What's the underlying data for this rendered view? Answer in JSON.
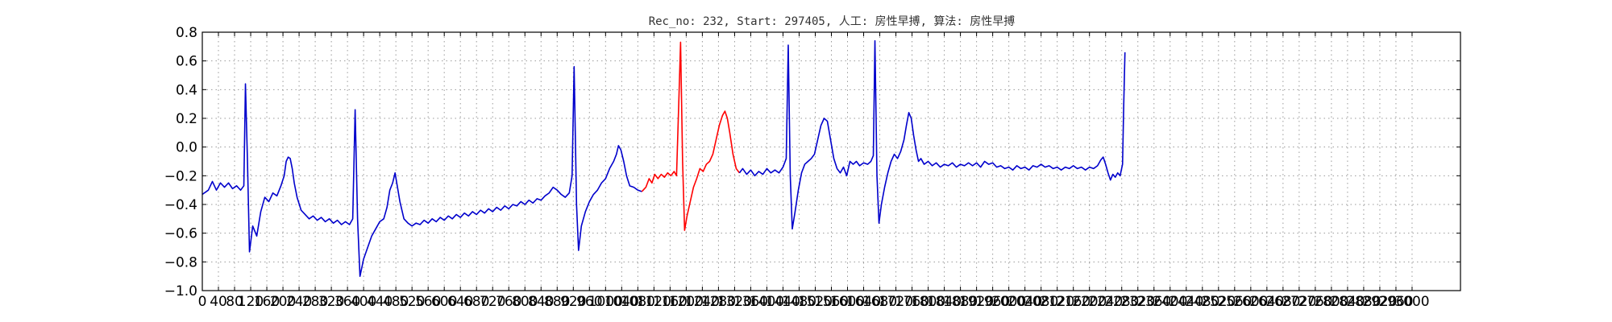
{
  "chart_data": {
    "type": "line",
    "title": "Rec_no: 232, Start: 297405, 人工: 房性早搏, 算法: 房性早搏",
    "xlabel": "",
    "ylabel": "",
    "xlim": [
      0,
      3120
    ],
    "ylim": [
      -1.0,
      0.8
    ],
    "grid": true,
    "legend": "none",
    "yticks": [
      -1.0,
      -0.8,
      -0.6,
      -0.4,
      -0.2,
      0.0,
      0.2,
      0.4,
      0.6,
      0.8
    ],
    "ytick_labels": [
      "−1.0",
      "−0.8",
      "−0.6",
      "−0.4",
      "−0.2",
      "0.0",
      "0.2",
      "0.4",
      "0.6",
      "0.8"
    ],
    "xticks": [
      0,
      40,
      80,
      120,
      160,
      200,
      240,
      280,
      320,
      360,
      400,
      440,
      480,
      520,
      560,
      600,
      640,
      680,
      720,
      760,
      800,
      840,
      880,
      920,
      960,
      1000,
      1040,
      1080,
      1120,
      1160,
      1200,
      1240,
      1280,
      1320,
      1360,
      1400,
      1440,
      1480,
      1520,
      1560,
      1600,
      1640,
      1680,
      1720,
      1760,
      1800,
      1840,
      1880,
      1920,
      1960,
      2000,
      2040,
      2080,
      2120,
      2160,
      2200,
      2240,
      2280,
      2320,
      2360,
      2400,
      2440,
      2480,
      2520,
      2560,
      2600,
      2640,
      2680,
      2720,
      2760,
      2800,
      2840,
      2880,
      2920,
      2960,
      3000
    ],
    "series": [
      {
        "color": "#0000cc",
        "points": [
          [
            0,
            -0.33
          ],
          [
            15,
            -0.3
          ],
          [
            25,
            -0.24
          ],
          [
            35,
            -0.3
          ],
          [
            45,
            -0.25
          ],
          [
            55,
            -0.28
          ],
          [
            65,
            -0.25
          ],
          [
            75,
            -0.29
          ],
          [
            85,
            -0.27
          ],
          [
            95,
            -0.3
          ],
          [
            103,
            -0.27
          ],
          [
            107,
            0.44
          ],
          [
            112,
            -0.1
          ],
          [
            117,
            -0.73
          ],
          [
            125,
            -0.55
          ],
          [
            135,
            -0.62
          ],
          [
            145,
            -0.45
          ],
          [
            155,
            -0.35
          ],
          [
            165,
            -0.38
          ],
          [
            175,
            -0.32
          ],
          [
            185,
            -0.34
          ],
          [
            195,
            -0.27
          ],
          [
            203,
            -0.2
          ],
          [
            208,
            -0.1
          ],
          [
            213,
            -0.07
          ],
          [
            218,
            -0.08
          ],
          [
            223,
            -0.15
          ],
          [
            228,
            -0.25
          ],
          [
            235,
            -0.35
          ],
          [
            245,
            -0.44
          ],
          [
            255,
            -0.47
          ],
          [
            265,
            -0.5
          ],
          [
            275,
            -0.48
          ],
          [
            285,
            -0.51
          ],
          [
            295,
            -0.49
          ],
          [
            305,
            -0.52
          ],
          [
            315,
            -0.5
          ],
          [
            325,
            -0.53
          ],
          [
            335,
            -0.51
          ],
          [
            345,
            -0.54
          ],
          [
            355,
            -0.52
          ],
          [
            365,
            -0.54
          ],
          [
            373,
            -0.5
          ],
          [
            379,
            0.26
          ],
          [
            385,
            -0.5
          ],
          [
            391,
            -0.9
          ],
          [
            400,
            -0.78
          ],
          [
            410,
            -0.7
          ],
          [
            420,
            -0.62
          ],
          [
            430,
            -0.57
          ],
          [
            440,
            -0.52
          ],
          [
            450,
            -0.5
          ],
          [
            458,
            -0.42
          ],
          [
            465,
            -0.3
          ],
          [
            472,
            -0.25
          ],
          [
            478,
            -0.18
          ],
          [
            484,
            -0.28
          ],
          [
            490,
            -0.38
          ],
          [
            500,
            -0.5
          ],
          [
            510,
            -0.53
          ],
          [
            520,
            -0.55
          ],
          [
            530,
            -0.53
          ],
          [
            540,
            -0.54
          ],
          [
            550,
            -0.51
          ],
          [
            560,
            -0.53
          ],
          [
            570,
            -0.5
          ],
          [
            580,
            -0.52
          ],
          [
            590,
            -0.49
          ],
          [
            600,
            -0.51
          ],
          [
            610,
            -0.48
          ],
          [
            620,
            -0.5
          ],
          [
            630,
            -0.47
          ],
          [
            640,
            -0.49
          ],
          [
            650,
            -0.46
          ],
          [
            660,
            -0.48
          ],
          [
            670,
            -0.45
          ],
          [
            680,
            -0.47
          ],
          [
            690,
            -0.44
          ],
          [
            700,
            -0.46
          ],
          [
            710,
            -0.43
          ],
          [
            720,
            -0.45
          ],
          [
            730,
            -0.42
          ],
          [
            740,
            -0.44
          ],
          [
            750,
            -0.41
          ],
          [
            760,
            -0.43
          ],
          [
            770,
            -0.4
          ],
          [
            780,
            -0.41
          ],
          [
            790,
            -0.38
          ],
          [
            800,
            -0.4
          ],
          [
            810,
            -0.37
          ],
          [
            820,
            -0.39
          ],
          [
            830,
            -0.36
          ],
          [
            840,
            -0.37
          ],
          [
            850,
            -0.34
          ],
          [
            860,
            -0.32
          ],
          [
            870,
            -0.28
          ],
          [
            880,
            -0.3
          ],
          [
            890,
            -0.33
          ],
          [
            900,
            -0.35
          ],
          [
            910,
            -0.32
          ],
          [
            917,
            -0.2
          ],
          [
            922,
            0.56
          ],
          [
            928,
            -0.4
          ],
          [
            933,
            -0.72
          ],
          [
            940,
            -0.55
          ],
          [
            950,
            -0.45
          ],
          [
            960,
            -0.38
          ],
          [
            970,
            -0.33
          ],
          [
            980,
            -0.3
          ],
          [
            990,
            -0.25
          ],
          [
            1000,
            -0.22
          ],
          [
            1010,
            -0.15
          ],
          [
            1020,
            -0.1
          ],
          [
            1027,
            -0.05
          ],
          [
            1032,
            0.01
          ],
          [
            1038,
            -0.02
          ],
          [
            1045,
            -0.1
          ],
          [
            1052,
            -0.2
          ],
          [
            1060,
            -0.27
          ],
          [
            1070,
            -0.28
          ],
          [
            1080,
            -0.3
          ],
          [
            1090,
            -0.31
          ]
        ]
      },
      {
        "color": "#ff0000",
        "points": [
          [
            1090,
            -0.31
          ],
          [
            1100,
            -0.28
          ],
          [
            1108,
            -0.22
          ],
          [
            1115,
            -0.25
          ],
          [
            1122,
            -0.19
          ],
          [
            1130,
            -0.22
          ],
          [
            1138,
            -0.19
          ],
          [
            1146,
            -0.21
          ],
          [
            1154,
            -0.18
          ],
          [
            1162,
            -0.2
          ],
          [
            1170,
            -0.17
          ],
          [
            1176,
            -0.2
          ],
          [
            1182,
            0.35
          ],
          [
            1186,
            0.73
          ],
          [
            1191,
            -0.1
          ],
          [
            1196,
            -0.58
          ],
          [
            1202,
            -0.48
          ],
          [
            1210,
            -0.38
          ],
          [
            1218,
            -0.28
          ],
          [
            1226,
            -0.22
          ],
          [
            1234,
            -0.15
          ],
          [
            1242,
            -0.17
          ],
          [
            1250,
            -0.12
          ],
          [
            1258,
            -0.1
          ],
          [
            1266,
            -0.05
          ],
          [
            1274,
            0.05
          ],
          [
            1282,
            0.15
          ],
          [
            1290,
            0.22
          ],
          [
            1296,
            0.25
          ],
          [
            1302,
            0.2
          ],
          [
            1308,
            0.1
          ],
          [
            1316,
            -0.05
          ],
          [
            1324,
            -0.15
          ],
          [
            1332,
            -0.18
          ]
        ]
      },
      {
        "color": "#0000cc",
        "points": [
          [
            1332,
            -0.18
          ],
          [
            1340,
            -0.15
          ],
          [
            1350,
            -0.19
          ],
          [
            1360,
            -0.16
          ],
          [
            1370,
            -0.2
          ],
          [
            1380,
            -0.17
          ],
          [
            1390,
            -0.19
          ],
          [
            1400,
            -0.15
          ],
          [
            1410,
            -0.18
          ],
          [
            1420,
            -0.16
          ],
          [
            1430,
            -0.18
          ],
          [
            1440,
            -0.14
          ],
          [
            1448,
            -0.08
          ],
          [
            1453,
            0.71
          ],
          [
            1458,
            -0.2
          ],
          [
            1463,
            -0.57
          ],
          [
            1470,
            -0.45
          ],
          [
            1478,
            -0.3
          ],
          [
            1486,
            -0.18
          ],
          [
            1494,
            -0.12
          ],
          [
            1502,
            -0.1
          ],
          [
            1510,
            -0.08
          ],
          [
            1518,
            -0.05
          ],
          [
            1526,
            0.05
          ],
          [
            1534,
            0.15
          ],
          [
            1542,
            0.2
          ],
          [
            1550,
            0.18
          ],
          [
            1558,
            0.05
          ],
          [
            1566,
            -0.08
          ],
          [
            1574,
            -0.15
          ],
          [
            1582,
            -0.18
          ],
          [
            1590,
            -0.14
          ],
          [
            1598,
            -0.2
          ],
          [
            1606,
            -0.1
          ],
          [
            1614,
            -0.12
          ],
          [
            1622,
            -0.1
          ],
          [
            1630,
            -0.13
          ],
          [
            1640,
            -0.11
          ],
          [
            1650,
            -0.12
          ],
          [
            1658,
            -0.1
          ],
          [
            1664,
            -0.06
          ],
          [
            1668,
            0.74
          ],
          [
            1673,
            -0.2
          ],
          [
            1678,
            -0.53
          ],
          [
            1684,
            -0.4
          ],
          [
            1692,
            -0.28
          ],
          [
            1700,
            -0.18
          ],
          [
            1708,
            -0.1
          ],
          [
            1716,
            -0.05
          ],
          [
            1724,
            -0.08
          ],
          [
            1732,
            -0.03
          ],
          [
            1740,
            0.05
          ],
          [
            1746,
            0.15
          ],
          [
            1752,
            0.24
          ],
          [
            1758,
            0.2
          ],
          [
            1764,
            0.08
          ],
          [
            1770,
            -0.02
          ],
          [
            1776,
            -0.1
          ],
          [
            1782,
            -0.08
          ],
          [
            1790,
            -0.12
          ],
          [
            1800,
            -0.1
          ],
          [
            1810,
            -0.13
          ],
          [
            1820,
            -0.11
          ],
          [
            1830,
            -0.14
          ],
          [
            1840,
            -0.12
          ],
          [
            1850,
            -0.13
          ],
          [
            1860,
            -0.11
          ],
          [
            1870,
            -0.14
          ],
          [
            1880,
            -0.12
          ],
          [
            1890,
            -0.13
          ],
          [
            1900,
            -0.11
          ],
          [
            1910,
            -0.13
          ],
          [
            1920,
            -0.11
          ],
          [
            1930,
            -0.14
          ],
          [
            1940,
            -0.1
          ],
          [
            1950,
            -0.12
          ],
          [
            1960,
            -0.11
          ],
          [
            1970,
            -0.14
          ],
          [
            1980,
            -0.13
          ],
          [
            1990,
            -0.15
          ],
          [
            2000,
            -0.14
          ],
          [
            2010,
            -0.16
          ],
          [
            2020,
            -0.13
          ],
          [
            2030,
            -0.15
          ],
          [
            2040,
            -0.14
          ],
          [
            2050,
            -0.16
          ],
          [
            2060,
            -0.13
          ],
          [
            2070,
            -0.14
          ],
          [
            2080,
            -0.12
          ],
          [
            2090,
            -0.14
          ],
          [
            2100,
            -0.13
          ],
          [
            2110,
            -0.15
          ],
          [
            2120,
            -0.14
          ],
          [
            2130,
            -0.16
          ],
          [
            2140,
            -0.14
          ],
          [
            2150,
            -0.15
          ],
          [
            2160,
            -0.13
          ],
          [
            2170,
            -0.15
          ],
          [
            2180,
            -0.14
          ],
          [
            2190,
            -0.16
          ],
          [
            2200,
            -0.14
          ],
          [
            2210,
            -0.15
          ],
          [
            2220,
            -0.13
          ],
          [
            2228,
            -0.09
          ],
          [
            2234,
            -0.07
          ],
          [
            2240,
            -0.12
          ],
          [
            2246,
            -0.18
          ],
          [
            2252,
            -0.23
          ],
          [
            2258,
            -0.19
          ],
          [
            2264,
            -0.21
          ],
          [
            2270,
            -0.18
          ],
          [
            2276,
            -0.2
          ],
          [
            2282,
            -0.12
          ],
          [
            2285,
            0.3
          ],
          [
            2288,
            0.66
          ]
        ]
      }
    ]
  }
}
